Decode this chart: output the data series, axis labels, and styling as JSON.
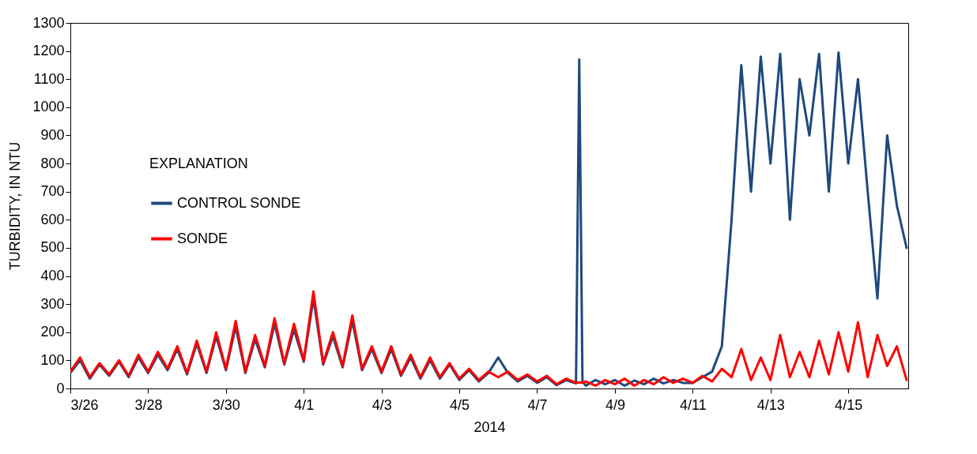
{
  "chart_data": {
    "type": "line",
    "xlabel": "2014",
    "ylabel": "TURBIDITY, IN NTU",
    "legend_title": "EXPLANATION",
    "legend": "left",
    "grid": false,
    "line_style": "solid",
    "marker": "none",
    "xlim": [
      "2014-03-26",
      "2014-04-16T13:00"
    ],
    "xticks": [
      {
        "value": "2014-03-26",
        "label": "3/26"
      },
      {
        "value": "2014-03-28",
        "label": "3/28"
      },
      {
        "value": "2014-03-30",
        "label": "3/30"
      },
      {
        "value": "2014-04-01",
        "label": "4/1"
      },
      {
        "value": "2014-04-03",
        "label": "4/3"
      },
      {
        "value": "2014-04-05",
        "label": "4/5"
      },
      {
        "value": "2014-04-07",
        "label": "4/7"
      },
      {
        "value": "2014-04-09",
        "label": "4/9"
      },
      {
        "value": "2014-04-11",
        "label": "4/11"
      },
      {
        "value": "2014-04-13",
        "label": "4/13"
      },
      {
        "value": "2014-04-15",
        "label": "4/15"
      }
    ],
    "ylim": [
      0,
      1300
    ],
    "yticks": [
      0,
      100,
      200,
      300,
      400,
      500,
      600,
      700,
      800,
      900,
      1000,
      1100,
      1200,
      1300
    ],
    "x": [
      "2014-03-26T00:00",
      "2014-03-26T06:00",
      "2014-03-26T12:00",
      "2014-03-26T18:00",
      "2014-03-27T00:00",
      "2014-03-27T06:00",
      "2014-03-27T12:00",
      "2014-03-27T18:00",
      "2014-03-28T00:00",
      "2014-03-28T06:00",
      "2014-03-28T12:00",
      "2014-03-28T18:00",
      "2014-03-29T00:00",
      "2014-03-29T06:00",
      "2014-03-29T12:00",
      "2014-03-29T18:00",
      "2014-03-30T00:00",
      "2014-03-30T06:00",
      "2014-03-30T12:00",
      "2014-03-30T18:00",
      "2014-03-31T00:00",
      "2014-03-31T06:00",
      "2014-03-31T12:00",
      "2014-03-31T18:00",
      "2014-04-01T00:00",
      "2014-04-01T06:00",
      "2014-04-01T12:00",
      "2014-04-01T18:00",
      "2014-04-02T00:00",
      "2014-04-02T06:00",
      "2014-04-02T12:00",
      "2014-04-02T18:00",
      "2014-04-03T00:00",
      "2014-04-03T06:00",
      "2014-04-03T12:00",
      "2014-04-03T18:00",
      "2014-04-04T00:00",
      "2014-04-04T06:00",
      "2014-04-04T12:00",
      "2014-04-04T18:00",
      "2014-04-05T00:00",
      "2014-04-05T06:00",
      "2014-04-05T12:00",
      "2014-04-05T18:00",
      "2014-04-06T00:00",
      "2014-04-06T06:00",
      "2014-04-06T12:00",
      "2014-04-06T18:00",
      "2014-04-07T00:00",
      "2014-04-07T06:00",
      "2014-04-07T12:00",
      "2014-04-07T18:00",
      "2014-04-08T00:00",
      "2014-04-08T02:00",
      "2014-04-08T04:00",
      "2014-04-08T06:00",
      "2014-04-08T12:00",
      "2014-04-08T18:00",
      "2014-04-09T00:00",
      "2014-04-09T06:00",
      "2014-04-09T12:00",
      "2014-04-09T18:00",
      "2014-04-10T00:00",
      "2014-04-10T06:00",
      "2014-04-10T12:00",
      "2014-04-10T18:00",
      "2014-04-11T00:00",
      "2014-04-11T06:00",
      "2014-04-11T12:00",
      "2014-04-11T18:00",
      "2014-04-12T00:00",
      "2014-04-12T06:00",
      "2014-04-12T12:00",
      "2014-04-12T18:00",
      "2014-04-13T00:00",
      "2014-04-13T06:00",
      "2014-04-13T12:00",
      "2014-04-13T18:00",
      "2014-04-14T00:00",
      "2014-04-14T06:00",
      "2014-04-14T12:00",
      "2014-04-14T18:00",
      "2014-04-15T00:00",
      "2014-04-15T06:00",
      "2014-04-15T12:00",
      "2014-04-15T18:00",
      "2014-04-16T00:00",
      "2014-04-16T06:00",
      "2014-04-16T12:00"
    ],
    "series": [
      {
        "name": "CONTROL SONDE",
        "color": "#1f497d",
        "values": [
          55,
          100,
          35,
          85,
          45,
          95,
          40,
          110,
          55,
          120,
          65,
          140,
          50,
          160,
          55,
          185,
          65,
          220,
          55,
          175,
          75,
          230,
          85,
          210,
          95,
          320,
          85,
          185,
          75,
          240,
          65,
          140,
          55,
          140,
          45,
          110,
          35,
          100,
          35,
          85,
          30,
          65,
          25,
          55,
          110,
          55,
          25,
          45,
          20,
          40,
          12,
          30,
          18,
          1170,
          25,
          10,
          30,
          15,
          30,
          10,
          28,
          15,
          35,
          18,
          30,
          20,
          20,
          40,
          60,
          150,
          600,
          1150,
          700,
          1180,
          800,
          1190,
          600,
          1100,
          900,
          1190,
          700,
          1195,
          800,
          1100,
          700,
          320,
          900,
          650,
          500
        ]
      },
      {
        "name": "SONDE",
        "color": "#ff0000",
        "values": [
          60,
          110,
          40,
          90,
          50,
          100,
          45,
          120,
          60,
          130,
          70,
          150,
          55,
          170,
          60,
          200,
          70,
          240,
          60,
          190,
          80,
          250,
          90,
          230,
          100,
          345,
          90,
          200,
          80,
          260,
          70,
          150,
          60,
          150,
          50,
          120,
          40,
          110,
          40,
          90,
          35,
          70,
          30,
          60,
          40,
          60,
          30,
          50,
          25,
          45,
          15,
          35,
          20,
          22,
          20,
          25,
          10,
          30,
          15,
          35,
          10,
          30,
          15,
          40,
          20,
          35,
          20,
          45,
          25,
          70,
          40,
          140,
          30,
          110,
          30,
          190,
          40,
          130,
          40,
          170,
          50,
          200,
          60,
          235,
          40,
          190,
          80,
          150,
          30
        ]
      }
    ]
  }
}
